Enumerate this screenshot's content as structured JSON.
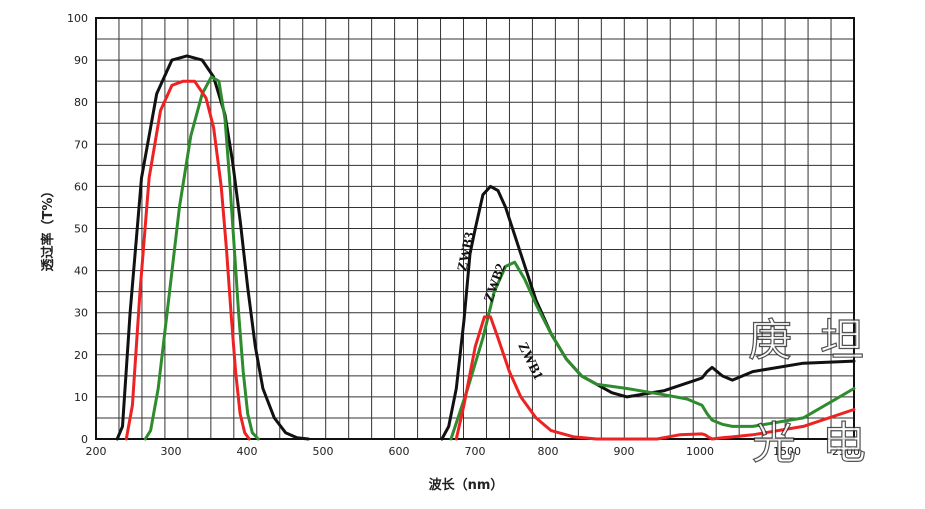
{
  "chart_data": {
    "type": "line",
    "title": "",
    "xlabel": "波长（nm）",
    "ylabel": "透过率（T%）",
    "ylim": [
      0,
      100
    ],
    "yticks": [
      0,
      10,
      20,
      30,
      40,
      50,
      60,
      70,
      80,
      90,
      100
    ],
    "xtick_labels": [
      "200",
      "300",
      "400",
      "500",
      "600",
      "700",
      "800",
      "900",
      "1000",
      "1500",
      "2500"
    ],
    "x_scale_note": "piecewise axis: 200-900 nm linear, 900-1000 nm, 1000-2500 nm",
    "grid": true,
    "series": [
      {
        "name": "ZWB3",
        "color": "#111111",
        "x": [
          228,
          235,
          245,
          260,
          280,
          300,
          320,
          340,
          355,
          370,
          380,
          390,
          400,
          410,
          420,
          435,
          450,
          465,
          480,
          null,
          656,
          665,
          675,
          685,
          693,
          700,
          710,
          720,
          730,
          740,
          760,
          780,
          800,
          820,
          840,
          860,
          880,
          900,
          950,
          1000,
          1050,
          1100,
          1200,
          1300,
          1500,
          2000,
          2500
        ],
        "y": [
          0,
          3,
          30,
          62,
          82,
          90,
          91,
          90,
          86,
          77,
          66,
          52,
          36,
          22,
          12,
          5,
          1.5,
          0.3,
          0,
          null,
          0,
          3,
          12,
          28,
          44,
          50,
          58,
          60,
          59,
          55,
          44,
          33,
          25,
          19,
          15,
          13,
          11,
          10,
          11.5,
          14.5,
          16,
          17,
          15,
          14,
          16,
          18,
          18.5
        ]
      },
      {
        "name": "ZWB2",
        "color": "#2e8b2e",
        "x": [
          265,
          272,
          282,
          295,
          310,
          325,
          340,
          352,
          362,
          370,
          376,
          382,
          388,
          394,
          400,
          406,
          414,
          null,
          668,
          690,
          710,
          725,
          740,
          752,
          765,
          780,
          800,
          820,
          840,
          860,
          880,
          900,
          950,
          980,
          1000,
          1050,
          1100,
          1200,
          1300,
          1500,
          2000,
          2500
        ],
        "y": [
          0,
          2,
          12,
          32,
          55,
          72,
          82,
          86,
          85,
          76,
          62,
          46,
          30,
          16,
          6,
          1.5,
          0,
          null,
          0,
          12,
          24,
          35,
          41,
          42,
          38,
          32,
          25,
          19,
          15,
          13,
          12.5,
          12,
          10.5,
          9.5,
          8,
          6,
          4.5,
          3.5,
          3,
          3,
          5,
          12
        ]
      },
      {
        "name": "ZWB1",
        "color": "#ee2222",
        "x": [
          240,
          248,
          258,
          270,
          285,
          300,
          315,
          330,
          345,
          355,
          365,
          372,
          378,
          384,
          390,
          396,
          402,
          null,
          675,
          685,
          700,
          712,
          720,
          730,
          745,
          760,
          780,
          800,
          830,
          860,
          900,
          940,
          970,
          1000,
          1030,
          1060,
          1100,
          1200,
          1300,
          1500,
          2000,
          2500
        ],
        "y": [
          0,
          8,
          35,
          62,
          78,
          84,
          85,
          85,
          81,
          74,
          60,
          45,
          30,
          16,
          6,
          1.5,
          0,
          null,
          0,
          8,
          22,
          29,
          29,
          24,
          16,
          10,
          5,
          2,
          0.5,
          0,
          0,
          0,
          1,
          1.2,
          1,
          0.5,
          0,
          0.3,
          0.5,
          1,
          3,
          7
        ]
      }
    ],
    "annotations": [
      "ZWB3",
      "ZWB2",
      "ZWB1"
    ]
  },
  "watermark": {
    "glyphs": [
      "庚",
      "坦",
      "光",
      "电"
    ]
  }
}
